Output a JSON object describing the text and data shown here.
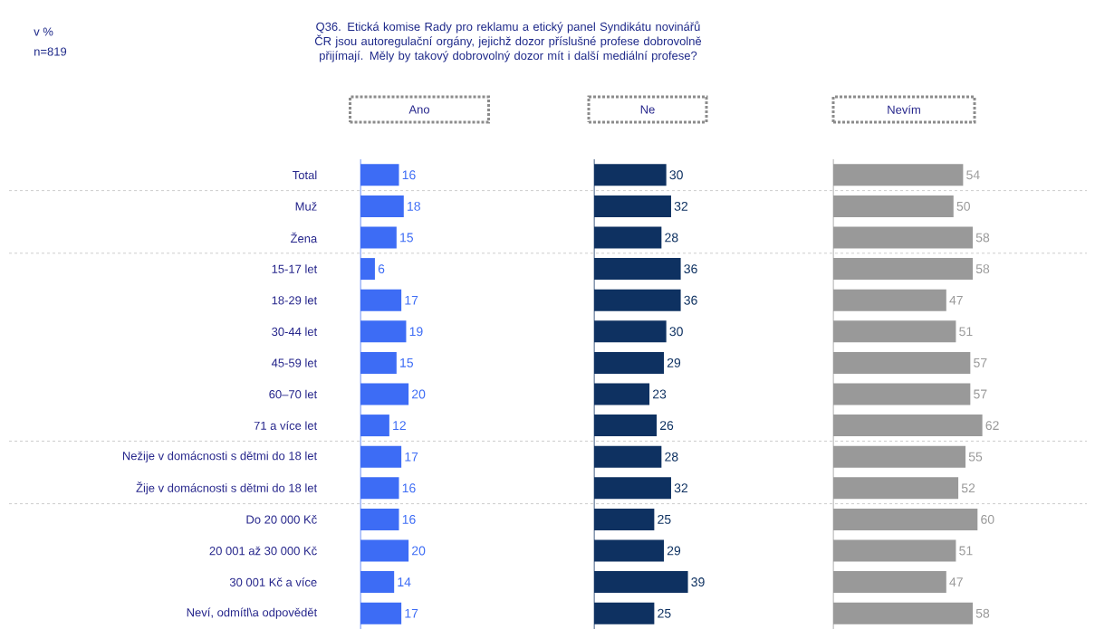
{
  "chart_data": [
    {
      "type": "bar",
      "orientation": "horizontal",
      "title": "Ano",
      "annotations": [
        "v %",
        "n=819",
        "Q36. Etická komise Rady pro reklamu a etický panel Syndikátu novinářů ČR jsou autoregulační orgány, jejichž dozor příslušné profese dobrovolně přijímají. Měly by takový dobrovolný dozor mít i další mediální profese?"
      ],
      "categories": [
        "Total",
        "Muž",
        "Žena",
        "15-17 let",
        "18-29 let",
        "30-44 let",
        "45-59 let",
        "60–70 let",
        "71 a více let",
        "Nežije v domácnosti s dětmi do 18 let",
        "Žije v domácnosti s dětmi do 18 let",
        "Do 20 000 Kč",
        "20 001 až 30 000 Kč",
        "30 001 Kč a více",
        "Neví, odmítl\\a odpovědět"
      ],
      "values": [
        16,
        18,
        15,
        6,
        17,
        19,
        15,
        20,
        12,
        17,
        16,
        16,
        20,
        14,
        17
      ],
      "color": "#3d6cf5",
      "data_labels": true,
      "tick_labels": "y"
    },
    {
      "type": "bar",
      "orientation": "horizontal",
      "title": "Ne",
      "categories": [
        null,
        null,
        null,
        null,
        null,
        null,
        null,
        null,
        null,
        null,
        null,
        null,
        null,
        null,
        null
      ],
      "values": [
        30,
        32,
        28,
        36,
        36,
        30,
        29,
        23,
        26,
        28,
        32,
        25,
        29,
        39,
        25
      ],
      "color": "#0e3161",
      "data_labels": true,
      "tick_labels": false
    },
    {
      "type": "bar",
      "orientation": "horizontal",
      "title": "Nevím",
      "categories": [
        null,
        null,
        null,
        null,
        null,
        null,
        null,
        null,
        null,
        null,
        null,
        null,
        null,
        null,
        null
      ],
      "values": [
        54,
        50,
        58,
        58,
        47,
        51,
        57,
        57,
        62,
        55,
        52,
        60,
        51,
        47,
        58
      ],
      "color": "#999999",
      "data_labels": true,
      "tick_labels": false
    }
  ]
}
